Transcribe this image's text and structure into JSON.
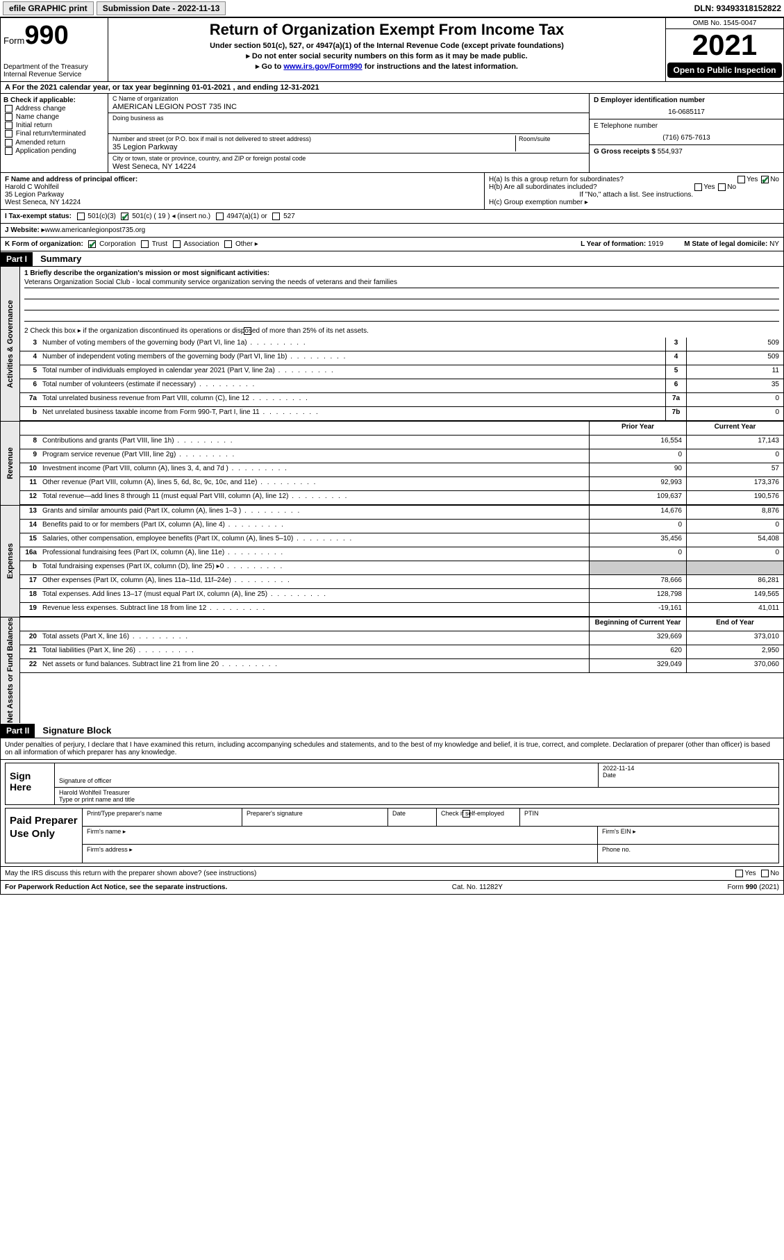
{
  "topbar": {
    "efile": "efile GRAPHIC print",
    "submission": "Submission Date - 2022-11-13",
    "dln": "DLN: 93493318152822"
  },
  "header": {
    "form_prefix": "Form",
    "form_number": "990",
    "dept": "Department of the Treasury\nInternal Revenue Service",
    "title": "Return of Organization Exempt From Income Tax",
    "sub1": "Under section 501(c), 527, or 4947(a)(1) of the Internal Revenue Code (except private foundations)",
    "sub2": "▸ Do not enter social security numbers on this form as it may be made public.",
    "sub3_prefix": "▸ Go to ",
    "sub3_link": "www.irs.gov/Form990",
    "sub3_suffix": " for instructions and the latest information.",
    "omb": "OMB No. 1545-0047",
    "year": "2021",
    "open": "Open to Public Inspection"
  },
  "a_row": "A For the 2021 calendar year, or tax year beginning 01-01-2021   , and ending 12-31-2021",
  "b": {
    "label": "B Check if applicable:",
    "opts": [
      "Address change",
      "Name change",
      "Initial return",
      "Final return/terminated",
      "Amended return",
      "Application pending"
    ]
  },
  "c": {
    "name_label": "C Name of organization",
    "name": "AMERICAN LEGION POST 735 INC",
    "dba_label": "Doing business as",
    "dba": "",
    "street_label": "Number and street (or P.O. box if mail is not delivered to street address)",
    "room_label": "Room/suite",
    "street": "35 Legion Parkway",
    "city_label": "City or town, state or province, country, and ZIP or foreign postal code",
    "city": "West Seneca, NY  14224"
  },
  "d": {
    "ein_label": "D Employer identification number",
    "ein": "16-0685117",
    "phone_label": "E Telephone number",
    "phone": "(716) 675-7613",
    "gross_label": "G Gross receipts $ ",
    "gross": "554,937"
  },
  "f": {
    "label": "F  Name and address of principal officer:",
    "name": "Harold C Wohlfeil",
    "addr1": "35 Legion Parkway",
    "addr2": "West Seneca, NY  14224"
  },
  "h": {
    "a_label": "H(a)  Is this a group return for subordinates?",
    "a_yes": "Yes",
    "a_no": "No",
    "b_label": "H(b)  Are all subordinates included?",
    "b_yes": "Yes",
    "b_no": "No",
    "note": "If \"No,\" attach a list. See instructions.",
    "c_label": "H(c)  Group exemption number ▸"
  },
  "i": {
    "label": "I   Tax-exempt status:",
    "c3": "501(c)(3)",
    "c": "501(c) ( 19 ) ◂ (insert no.)",
    "a1": "4947(a)(1) or",
    "s527": "527"
  },
  "j": {
    "label": "J   Website: ▸ ",
    "val": "www.americanlegionpost735.org"
  },
  "k": {
    "label": "K Form of organization:",
    "corp": "Corporation",
    "trust": "Trust",
    "assoc": "Association",
    "other": "Other ▸",
    "l_label": "L Year of formation: ",
    "l_val": "1919",
    "m_label": "M State of legal domicile: ",
    "m_val": "NY"
  },
  "part1": {
    "header": "Part I",
    "title": "Summary",
    "q1_label": "1  Briefly describe the organization's mission or most significant activities:",
    "q1_val": "Veterans Organization Social Club - local community service organization serving the needs of veterans and their families",
    "q2": "2   Check this box ▸      if the organization discontinued its operations or disposed of more than 25% of its net assets."
  },
  "governance": {
    "tab": "Activities & Governance",
    "rows": [
      {
        "n": "3",
        "d": "Number of voting members of the governing body (Part VI, line 1a)",
        "box": "3",
        "v": "509"
      },
      {
        "n": "4",
        "d": "Number of independent voting members of the governing body (Part VI, line 1b)",
        "box": "4",
        "v": "509"
      },
      {
        "n": "5",
        "d": "Total number of individuals employed in calendar year 2021 (Part V, line 2a)",
        "box": "5",
        "v": "11"
      },
      {
        "n": "6",
        "d": "Total number of volunteers (estimate if necessary)",
        "box": "6",
        "v": "35"
      },
      {
        "n": "7a",
        "d": "Total unrelated business revenue from Part VIII, column (C), line 12",
        "box": "7a",
        "v": "0"
      },
      {
        "n": "b",
        "d": "Net unrelated business taxable income from Form 990-T, Part I, line 11",
        "box": "7b",
        "v": "0"
      }
    ]
  },
  "revenue": {
    "tab": "Revenue",
    "hdr_prior": "Prior Year",
    "hdr_curr": "Current Year",
    "rows": [
      {
        "n": "8",
        "d": "Contributions and grants (Part VIII, line 1h)",
        "p": "16,554",
        "c": "17,143"
      },
      {
        "n": "9",
        "d": "Program service revenue (Part VIII, line 2g)",
        "p": "0",
        "c": "0"
      },
      {
        "n": "10",
        "d": "Investment income (Part VIII, column (A), lines 3, 4, and 7d )",
        "p": "90",
        "c": "57"
      },
      {
        "n": "11",
        "d": "Other revenue (Part VIII, column (A), lines 5, 6d, 8c, 9c, 10c, and 11e)",
        "p": "92,993",
        "c": "173,376"
      },
      {
        "n": "12",
        "d": "Total revenue—add lines 8 through 11 (must equal Part VIII, column (A), line 12)",
        "p": "109,637",
        "c": "190,576"
      }
    ]
  },
  "expenses": {
    "tab": "Expenses",
    "rows": [
      {
        "n": "13",
        "d": "Grants and similar amounts paid (Part IX, column (A), lines 1–3 )",
        "p": "14,676",
        "c": "8,876"
      },
      {
        "n": "14",
        "d": "Benefits paid to or for members (Part IX, column (A), line 4)",
        "p": "0",
        "c": "0"
      },
      {
        "n": "15",
        "d": "Salaries, other compensation, employee benefits (Part IX, column (A), lines 5–10)",
        "p": "35,456",
        "c": "54,408"
      },
      {
        "n": "16a",
        "d": "Professional fundraising fees (Part IX, column (A), line 11e)",
        "p": "0",
        "c": "0"
      },
      {
        "n": "b",
        "d": "Total fundraising expenses (Part IX, column (D), line 25) ▸0",
        "p": "",
        "c": "",
        "shade": true
      },
      {
        "n": "17",
        "d": "Other expenses (Part IX, column (A), lines 11a–11d, 11f–24e)",
        "p": "78,666",
        "c": "86,281"
      },
      {
        "n": "18",
        "d": "Total expenses. Add lines 13–17 (must equal Part IX, column (A), line 25)",
        "p": "128,798",
        "c": "149,565"
      },
      {
        "n": "19",
        "d": "Revenue less expenses. Subtract line 18 from line 12",
        "p": "-19,161",
        "c": "41,011"
      }
    ]
  },
  "netassets": {
    "tab": "Net Assets or Fund Balances",
    "hdr_beg": "Beginning of Current Year",
    "hdr_end": "End of Year",
    "rows": [
      {
        "n": "20",
        "d": "Total assets (Part X, line 16)",
        "p": "329,669",
        "c": "373,010"
      },
      {
        "n": "21",
        "d": "Total liabilities (Part X, line 26)",
        "p": "620",
        "c": "2,950"
      },
      {
        "n": "22",
        "d": "Net assets or fund balances. Subtract line 21 from line 20",
        "p": "329,049",
        "c": "370,060"
      }
    ]
  },
  "part2": {
    "header": "Part II",
    "title": "Signature Block",
    "decl": "Under penalties of perjury, I declare that I have examined this return, including accompanying schedules and statements, and to the best of my knowledge and belief, it is true, correct, and complete. Declaration of preparer (other than officer) is based on all information of which preparer has any knowledge."
  },
  "sign": {
    "label": "Sign Here",
    "sig_label": "Signature of officer",
    "date_label": "Date",
    "date": "2022-11-14",
    "name": "Harold Wohlfeil Treasurer",
    "name_label": "Type or print name and title"
  },
  "preparer": {
    "label": "Paid Preparer Use Only",
    "cols": [
      "Print/Type preparer's name",
      "Preparer's signature",
      "Date"
    ],
    "check": "Check       if self-employed",
    "ptin": "PTIN",
    "firm_name": "Firm's name    ▸",
    "firm_ein": "Firm's EIN ▸",
    "firm_addr": "Firm's address ▸",
    "phone": "Phone no."
  },
  "footer": {
    "discuss": "May the IRS discuss this return with the preparer shown above? (see instructions)",
    "yes": "Yes",
    "no": "No",
    "pra": "For Paperwork Reduction Act Notice, see the separate instructions.",
    "cat": "Cat. No. 11282Y",
    "form": "Form 990 (2021)"
  }
}
